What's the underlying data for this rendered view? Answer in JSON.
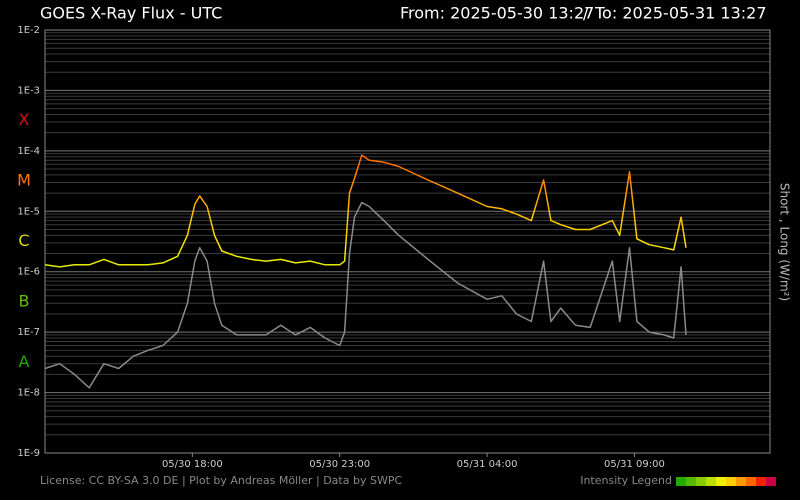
{
  "chart_data": {
    "type": "line",
    "title": "GOES X-Ray Flux - UTC",
    "subtitle_from": "From: 2025-05-30 13:27",
    "subtitle_separator": "/",
    "subtitle_to": "To: 2025-05-31 13:27",
    "y_axis_label": "Short , Long (W/m²)",
    "footer": "License: CC BY-SA 3.0 DE | Plot by Andreas Möller | Data by SWPC",
    "legend_title": "Intensity Legend",
    "intensity_colors": [
      "#22aa00",
      "#55bb00",
      "#88cc00",
      "#bbdd00",
      "#eeee00",
      "#ffcc00",
      "#ff9900",
      "#ff6600",
      "#ee2200",
      "#cc0044"
    ],
    "log_scale": true,
    "grid": true,
    "minor_grid": true,
    "ylim": [
      1e-09,
      0.01
    ],
    "yticks": [
      {
        "value": 1e-09,
        "label": "1E-9"
      },
      {
        "value": 1e-08,
        "label": "1E-8"
      },
      {
        "value": 1e-07,
        "label": "1E-7"
      },
      {
        "value": 1e-06,
        "label": "1E-6"
      },
      {
        "value": 1e-05,
        "label": "1E-5"
      },
      {
        "value": 0.0001,
        "label": "1E-4"
      },
      {
        "value": 0.001,
        "label": "1E-3"
      },
      {
        "value": 0.01,
        "label": "1E-2"
      }
    ],
    "flare_classes": [
      {
        "label": "A",
        "threshold": 1e-08,
        "color": "#22aa00"
      },
      {
        "label": "B",
        "threshold": 1e-07,
        "color": "#66bb00"
      },
      {
        "label": "C",
        "threshold": 1e-06,
        "color": "#dddd00"
      },
      {
        "label": "M",
        "threshold": 1e-05,
        "color": "#ff7700"
      },
      {
        "label": "X",
        "threshold": 0.0001,
        "color": "#dd1111"
      }
    ],
    "xlim": [
      "2025-05-30 13:00",
      "2025-05-31 13:36"
    ],
    "xticks": [
      {
        "value": "2025-05-30 18:00",
        "label": "05/30 18:00"
      },
      {
        "value": "2025-05-30 23:00",
        "label": "05/30 23:00"
      },
      {
        "value": "2025-05-31 04:00",
        "label": "05/31 04:00"
      },
      {
        "value": "2025-05-31 09:00",
        "label": "05/31 09:00"
      }
    ],
    "x": [
      "2025-05-30 13:00",
      "2025-05-30 13:30",
      "2025-05-30 14:00",
      "2025-05-30 14:30",
      "2025-05-30 15:00",
      "2025-05-30 15:30",
      "2025-05-30 16:00",
      "2025-05-30 16:30",
      "2025-05-30 17:00",
      "2025-05-30 17:30",
      "2025-05-30 17:50",
      "2025-05-30 18:05",
      "2025-05-30 18:15",
      "2025-05-30 18:30",
      "2025-05-30 18:45",
      "2025-05-30 19:00",
      "2025-05-30 19:30",
      "2025-05-30 20:00",
      "2025-05-30 20:30",
      "2025-05-30 21:00",
      "2025-05-30 21:30",
      "2025-05-30 22:00",
      "2025-05-30 22:30",
      "2025-05-30 23:00",
      "2025-05-30 23:10",
      "2025-05-30 23:20",
      "2025-05-30 23:30",
      "2025-05-30 23:45",
      "2025-05-31 00:00",
      "2025-05-31 00:30",
      "2025-05-31 01:00",
      "2025-05-31 02:00",
      "2025-05-31 03:00",
      "2025-05-31 04:00",
      "2025-05-31 04:30",
      "2025-05-31 05:00",
      "2025-05-31 05:30",
      "2025-05-31 05:55",
      "2025-05-31 06:10",
      "2025-05-31 06:30",
      "2025-05-31 07:00",
      "2025-05-31 07:30",
      "2025-05-31 08:15",
      "2025-05-31 08:30",
      "2025-05-31 08:50",
      "2025-05-31 09:05",
      "2025-05-31 09:30",
      "2025-05-31 10:00",
      "2025-05-31 10:20",
      "2025-05-31 10:35",
      "2025-05-31 10:45"
    ],
    "series": [
      {
        "name": "Long",
        "color": "gradient",
        "values": [
          1.3e-06,
          1.2e-06,
          1.3e-06,
          1.3e-06,
          1.6e-06,
          1.3e-06,
          1.3e-06,
          1.3e-06,
          1.4e-06,
          1.8e-06,
          4e-06,
          1.3e-05,
          1.8e-05,
          1.2e-05,
          4e-06,
          2.2e-06,
          1.8e-06,
          1.6e-06,
          1.5e-06,
          1.6e-06,
          1.4e-06,
          1.5e-06,
          1.3e-06,
          1.3e-06,
          1.5e-06,
          2e-05,
          3.5e-05,
          8.5e-05,
          7e-05,
          6.5e-05,
          5.5e-05,
          3.3e-05,
          2e-05,
          1.2e-05,
          1.1e-05,
          9e-06,
          7e-06,
          3.3e-05,
          7e-06,
          6e-06,
          5e-06,
          5e-06,
          7e-06,
          4e-06,
          4.5e-05,
          3.5e-06,
          2.8e-06,
          2.5e-06,
          2.3e-06,
          8e-06,
          2.5e-06
        ]
      },
      {
        "name": "Short",
        "color": "#8a8a8a",
        "values": [
          2.5e-08,
          3e-08,
          2e-08,
          1.2e-08,
          3e-08,
          2.5e-08,
          4e-08,
          5e-08,
          6e-08,
          1e-07,
          3e-07,
          1.5e-06,
          2.5e-06,
          1.5e-06,
          3e-07,
          1.3e-07,
          9e-08,
          9e-08,
          9e-08,
          1.3e-07,
          9e-08,
          1.2e-07,
          8e-08,
          6e-08,
          1e-07,
          2e-06,
          8e-06,
          1.4e-05,
          1.2e-05,
          7e-06,
          4e-06,
          1.6e-06,
          6.5e-07,
          3.5e-07,
          4e-07,
          2e-07,
          1.5e-07,
          1.5e-06,
          1.5e-07,
          2.5e-07,
          1.3e-07,
          1.2e-07,
          1.5e-06,
          1.5e-07,
          2.5e-06,
          1.5e-07,
          1e-07,
          9e-08,
          8e-08,
          1.2e-06,
          9e-08
        ]
      }
    ]
  }
}
